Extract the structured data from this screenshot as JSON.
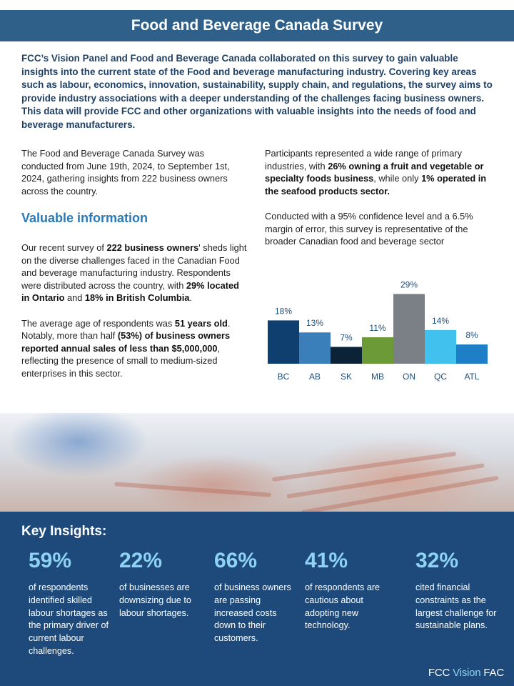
{
  "header": {
    "title": "Food and Beverage Canada Survey"
  },
  "intro": "FCC’s Vision Panel and Food and Beverage Canada collaborated on this survey to gain valuable insights into the current state of the Food and beverage manufacturing industry. Covering key areas such as labour, economics, innovation, sustainability, supply chain, and regulations, the survey aims to provide industry associations with a deeper understanding of the challenges facing business owners. This data will provide FCC and other organizations with valuable insights into the needs of food and beverage manufacturers.",
  "left": {
    "p1": "The Food and Beverage Canada Survey was conducted from June 19th, 2024, to September 1st, 2024, gathering insights from 222 business owners across the country.",
    "section_title": "Valuable information",
    "p2": {
      "a": "Our recent survey of ",
      "b1": "222 business owners",
      "c": "' sheds light on the diverse challenges faced in the Canadian Food and beverage manufacturing industry. Respondents were distributed across the country, with ",
      "b2": "29% located in Ontario",
      "d": " and ",
      "b3": "18% in British Columbia",
      "e": "."
    },
    "p3": {
      "a": "The average age of respondents was ",
      "b1": "51 years old",
      "c": ". Notably, more than half ",
      "b2": "(53%) of business owners reported annual sales of less than $5,000,000",
      "d": ", reflecting the presence of small to medium-sized enterprises in this sector."
    }
  },
  "right": {
    "p1": {
      "a": "Participants represented a wide range of primary industries, with ",
      "b1": "26% owning a fruit and vegetable or specialty foods business",
      "c": ", while only ",
      "b2": "1% operated in the seafood products sector."
    },
    "p2": "Conducted with a 95% confidence level and a 6.5% margin of error, this survey is representative of the broader Canadian food and beverage sector"
  },
  "chart_data": {
    "type": "bar",
    "title": "",
    "xlabel": "",
    "ylabel": "",
    "categories": [
      "BC",
      "AB",
      "SK",
      "MB",
      "ON",
      "QC",
      "ATL"
    ],
    "values": [
      18,
      13,
      7,
      11,
      29,
      14,
      8
    ],
    "value_labels": [
      "18%",
      "13%",
      "7%",
      "11%",
      "29%",
      "14%",
      "8%"
    ],
    "colors": [
      "#0e3f6e",
      "#3a7fb9",
      "#0c2237",
      "#6c9a36",
      "#7b7f86",
      "#40c1ee",
      "#1e7fc7"
    ],
    "ylim": [
      0,
      30
    ],
    "grid": false
  },
  "insights": {
    "title": "Key Insights:",
    "items": [
      {
        "pct": "59%",
        "desc": "of respondents identified skilled labour shortages as the primary driver of current labour challenges."
      },
      {
        "pct": "22%",
        "desc": "of businesses are downsizing due to labour shortages."
      },
      {
        "pct": "66%",
        "desc": "of business owners are passing increased costs down to their customers."
      },
      {
        "pct": "41%",
        "desc": "of respondents are cautious about adopting new technology."
      },
      {
        "pct": "32%",
        "desc": "cited financial constraints as the largest challenge for sustainable plans."
      }
    ]
  },
  "logo": {
    "fcc": "FCC",
    "vision": "Vision",
    "fac": "FAC"
  },
  "colors": {
    "header": "#2f6089",
    "accent": "#2a7ab8",
    "insights_bg": "#1d4a7a",
    "insight_pct": "#8fd3f4"
  }
}
